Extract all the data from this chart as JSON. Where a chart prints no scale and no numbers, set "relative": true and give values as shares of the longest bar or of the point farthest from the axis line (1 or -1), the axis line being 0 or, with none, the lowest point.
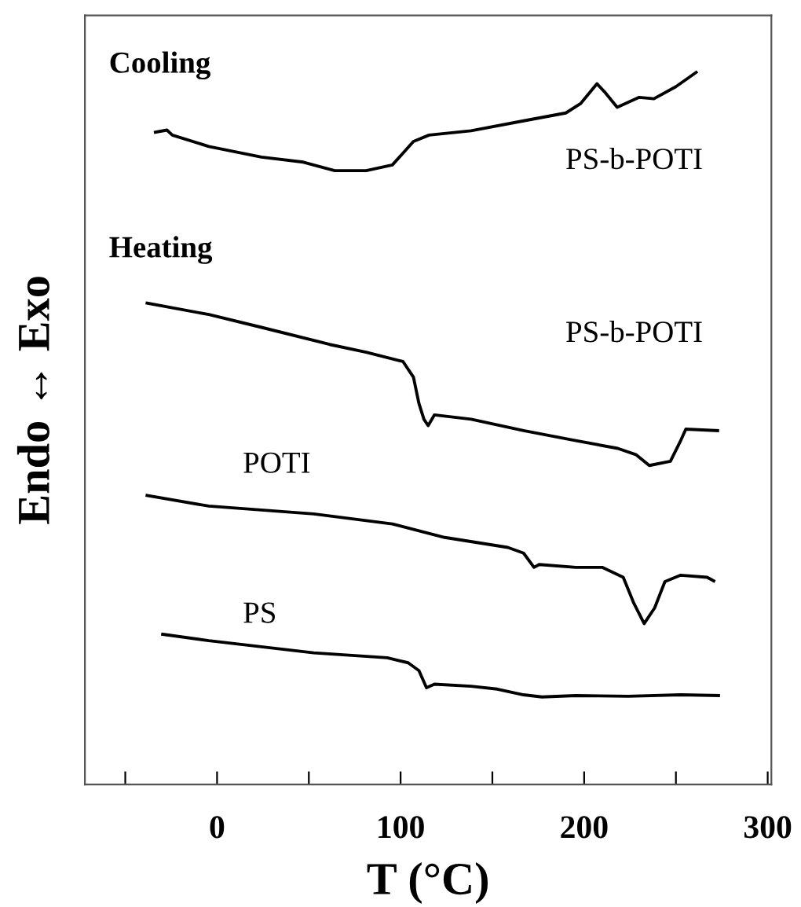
{
  "chart_data": {
    "type": "line",
    "relative": true,
    "xlabel": "T (°C)",
    "ylabel": "Endo ↔ Exo",
    "xlim": [
      -72,
      302
    ],
    "xticks": [
      {
        "value": -50,
        "label": null
      },
      0,
      {
        "value": 50,
        "label": null
      },
      100,
      {
        "value": 150,
        "label": null
      },
      200,
      {
        "value": 250,
        "label": null
      },
      300
    ],
    "tick_labels": "x",
    "grid": false,
    "legend": false,
    "marker": "none",
    "line_style": "solid",
    "series": [
      {
        "name": "PS-b-POTI",
        "color": "#000000",
        "x": [
          -33.6,
          -27.3,
          -24.4,
          -4.5,
          24.2,
          47.0,
          64.1,
          81.2,
          95.5,
          107,
          115.5,
          138.4,
          167,
          190,
          198,
          207,
          211,
          218,
          230,
          238,
          250,
          261
        ],
        "values": [
          0.916,
          0.919,
          0.912,
          0.896,
          0.881,
          0.874,
          0.862,
          0.862,
          0.87,
          0.903,
          0.912,
          0.918,
          0.932,
          0.943,
          0.956,
          0.984,
          0.973,
          0.951,
          0.965,
          0.963,
          0.98,
          1.0
        ]
      },
      {
        "name": "PS-b-POTI",
        "color": "#000000",
        "x": [
          -38.1,
          -4.5,
          24.2,
          61.3,
          81.2,
          101.3,
          107,
          110,
          112.7,
          115,
          118.4,
          138.4,
          167,
          195.5,
          218.3,
          228.4,
          235.5,
          247,
          252.6,
          255.4,
          272.7
        ],
        "values": [
          0.676,
          0.66,
          0.642,
          0.618,
          0.607,
          0.594,
          0.572,
          0.535,
          0.513,
          0.504,
          0.519,
          0.513,
          0.497,
          0.483,
          0.472,
          0.463,
          0.448,
          0.454,
          0.483,
          0.499,
          0.497
        ]
      },
      {
        "name": "POTI",
        "color": "#000000",
        "x": [
          -38.1,
          -4.5,
          52.7,
          95.5,
          124,
          158.4,
          167,
          172.7,
          175.5,
          195.5,
          209.8,
          221.3,
          227,
          232.7,
          238.4,
          244,
          252.6,
          267,
          270.6
        ],
        "values": [
          0.406,
          0.391,
          0.38,
          0.366,
          0.347,
          0.333,
          0.325,
          0.305,
          0.309,
          0.305,
          0.305,
          0.291,
          0.255,
          0.226,
          0.248,
          0.285,
          0.294,
          0.291,
          0.286
        ]
      },
      {
        "name": "PS",
        "color": "#000000",
        "x": [
          -29.6,
          -4.5,
          52.7,
          92.7,
          104.1,
          110,
          114.1,
          118.4,
          138.4,
          152.7,
          167,
          177,
          195.5,
          224,
          252.6,
          273.2
        ],
        "values": [
          0.211,
          0.202,
          0.185,
          0.178,
          0.171,
          0.16,
          0.136,
          0.141,
          0.138,
          0.134,
          0.126,
          0.123,
          0.125,
          0.124,
          0.126,
          0.125
        ]
      }
    ],
    "annotations": [
      "Cooling",
      "Heating"
    ]
  }
}
